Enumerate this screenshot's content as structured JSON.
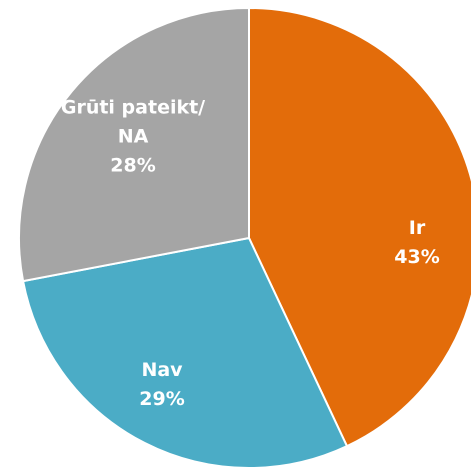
{
  "chart_data": {
    "type": "pie",
    "start_angle_deg": 0,
    "direction": "clockwise",
    "slices": [
      {
        "label": "Ir",
        "value": 43,
        "label_text": "43%",
        "color": "#E36C0A"
      },
      {
        "label": "Nav",
        "value": 29,
        "label_text": "29%",
        "color": "#4BACC6"
      },
      {
        "label": "Grūti pateikt/ NA",
        "label_lines": [
          "Grūti pateikt/",
          "NA"
        ],
        "value": 28,
        "label_text": "28%",
        "color": "#A5A5A5"
      }
    ],
    "legend": "none"
  }
}
